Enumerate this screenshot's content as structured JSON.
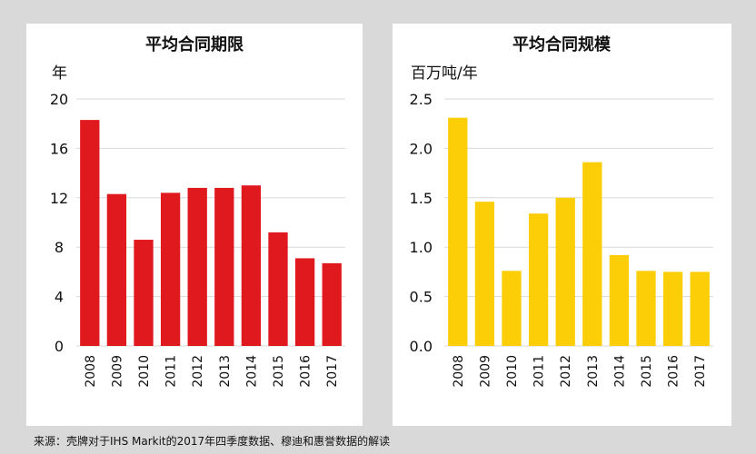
{
  "chart_data": [
    {
      "type": "bar",
      "title": "平均合同期限",
      "ylabel": "年",
      "xlabel": "",
      "categories": [
        "2008",
        "2009",
        "2010",
        "2011",
        "2012",
        "2013",
        "2014",
        "2015",
        "2016",
        "2017"
      ],
      "values": [
        18.3,
        12.3,
        8.6,
        12.4,
        12.8,
        12.8,
        13.0,
        9.2,
        7.1,
        6.7
      ],
      "ylim": [
        0,
        20
      ],
      "yticks": [
        0,
        4,
        8,
        12,
        16,
        20
      ],
      "ytick_labels": [
        "0",
        "4",
        "8",
        "12",
        "16",
        "20"
      ],
      "grid": true,
      "color": "#e0191f"
    },
    {
      "type": "bar",
      "title": "平均合同规模",
      "ylabel": "百万吨/年",
      "xlabel": "",
      "categories": [
        "2008",
        "2009",
        "2010",
        "2011",
        "2012",
        "2013",
        "2014",
        "2015",
        "2016",
        "2017"
      ],
      "values": [
        2.31,
        1.46,
        0.76,
        1.34,
        1.5,
        1.86,
        0.92,
        0.76,
        0.75,
        0.75
      ],
      "ylim": [
        0,
        2.5
      ],
      "yticks": [
        0,
        0.5,
        1.0,
        1.5,
        2.0,
        2.5
      ],
      "ytick_labels": [
        "0.0",
        "0.5",
        "1.0",
        "1.5",
        "2.0",
        "2.5"
      ],
      "grid": true,
      "color": "#fbce07"
    }
  ],
  "footer": {
    "source": "来源：壳牌对于IHS Markit的2017年四季度数据、穆迪和惠誉数据的解读"
  }
}
